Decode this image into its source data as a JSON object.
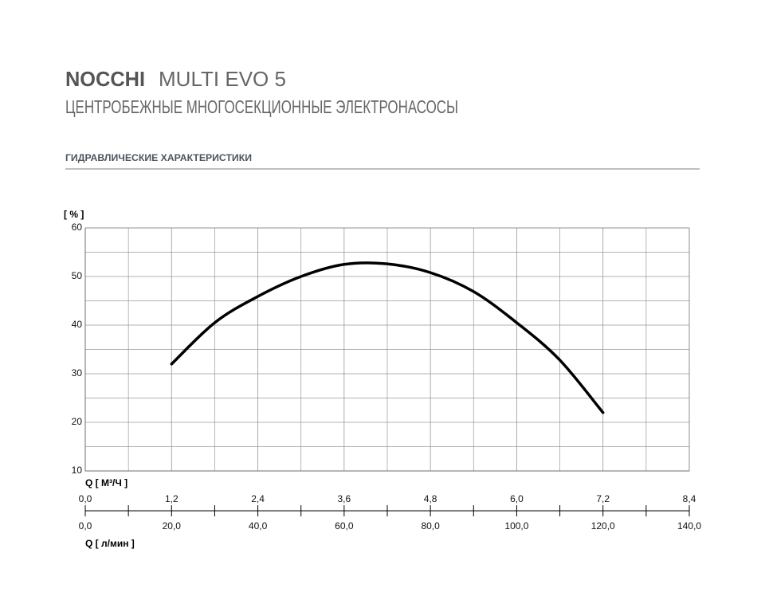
{
  "header": {
    "brand": "NOCCHI",
    "model": "MULTI EVO 5",
    "subtitle": "ЦЕНТРОБЕЖНЫЕ МНОГОСЕКЦИОННЫЕ ЭЛЕКТРОНАСОСЫ",
    "section": "ГИДРАВЛИЧЕСКИЕ ХАРАКТЕРИСТИКИ"
  },
  "chart_data": {
    "type": "line",
    "y_label": "[ % ]",
    "x2_label": "Q [ M³/Ч ]",
    "x_label": "Q [ л/мин ]",
    "x": [
      20,
      30,
      40,
      50,
      60,
      70,
      80,
      90,
      100,
      110,
      120
    ],
    "series": [
      {
        "color": "#000000",
        "values": [
          32,
          40.5,
          45.9,
          50,
          52.5,
          52.6,
          50.8,
          46.9,
          40.5,
          32.8,
          22
        ]
      }
    ],
    "xlim": [
      0,
      140
    ],
    "xticks": [
      {
        "value": 0,
        "label": "0,0"
      },
      {
        "value": 20,
        "label": "20,0"
      },
      {
        "value": 40,
        "label": "40,0"
      },
      {
        "value": 60,
        "label": "60,0"
      },
      {
        "value": 80,
        "label": "80,0"
      },
      {
        "value": 100,
        "label": "100,0"
      },
      {
        "value": 120,
        "label": "120,0"
      },
      {
        "value": 140,
        "label": "140,0"
      }
    ],
    "x2lim": [
      0,
      8.4
    ],
    "x2ticks": [
      {
        "value": 0,
        "label": "0,0"
      },
      {
        "value": 1.2,
        "label": "1,2"
      },
      {
        "value": 2.4,
        "label": "2,4"
      },
      {
        "value": 3.6,
        "label": "3,6"
      },
      {
        "value": 4.8,
        "label": "4,8"
      },
      {
        "value": 6,
        "label": "6,0"
      },
      {
        "value": 7.2,
        "label": "7,2"
      },
      {
        "value": 8.4,
        "label": "8,4"
      }
    ],
    "ylim": [
      10,
      60
    ],
    "yticks": [
      10,
      20,
      30,
      40,
      50,
      60
    ],
    "grid": true
  }
}
